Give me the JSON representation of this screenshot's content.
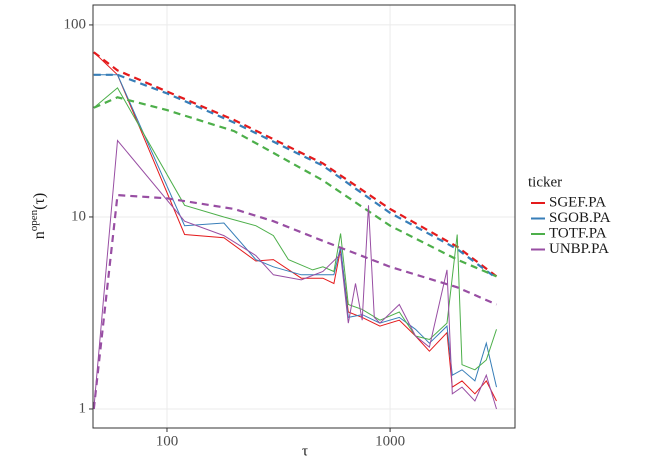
{
  "chart_data": {
    "type": "line",
    "xlabel": "τ",
    "ylabel": [
      "n",
      "open",
      "(τ)"
    ],
    "legend_title": "ticker",
    "legend": "right",
    "grid": true,
    "xscale": "log",
    "yscale": "log",
    "xlim": [
      46.6,
      3630
    ],
    "ylim": [
      0.796,
      127
    ],
    "xticks": [
      100,
      1000
    ],
    "yticks": [
      1,
      10,
      100
    ],
    "series": [
      {
        "name": "SGEF.PA",
        "color": "#e41a1c",
        "x": [
          47,
          60,
          120,
          180,
          250,
          300,
          400,
          500,
          560,
          600,
          650,
          750,
          900,
          1100,
          1300,
          1500,
          1800,
          1900,
          2100,
          2400,
          2700,
          3000
        ],
        "values": [
          72,
          55,
          8.1,
          7.8,
          5.9,
          6,
          4.8,
          4.8,
          4.5,
          6.8,
          3.2,
          3,
          2.7,
          2.9,
          2.4,
          2,
          2.5,
          1.3,
          1.4,
          1.2,
          1.4,
          1.1
        ],
        "fit_x": [
          47,
          60,
          100,
          200,
          500,
          1000,
          2000,
          3000
        ],
        "fit_values": [
          72,
          58,
          45,
          32,
          19,
          11,
          7,
          4.9
        ]
      },
      {
        "name": "SGOB.PA",
        "color": "#377eb8",
        "x": [
          47,
          60,
          120,
          180,
          250,
          300,
          400,
          500,
          560,
          600,
          650,
          750,
          900,
          1100,
          1300,
          1500,
          1800,
          1900,
          2100,
          2400,
          2700,
          3000
        ],
        "values": [
          55,
          55,
          9,
          9.3,
          6,
          5.5,
          5,
          5,
          5,
          7,
          3,
          3.1,
          2.8,
          3,
          2.6,
          2.2,
          2.7,
          1.5,
          1.6,
          1.4,
          2.2,
          1.3
        ],
        "fit_x": [
          47,
          60,
          100,
          200,
          500,
          1000,
          2000,
          3000
        ],
        "fit_values": [
          55,
          55,
          44,
          31,
          18.5,
          10.5,
          6.8,
          4.8
        ]
      },
      {
        "name": "TOTF.PA",
        "color": "#4daf4a",
        "x": [
          47,
          60,
          120,
          180,
          250,
          300,
          350,
          450,
          500,
          560,
          600,
          650,
          750,
          900,
          1100,
          1300,
          1500,
          1800,
          2000,
          2100,
          2400,
          2700,
          3000
        ],
        "values": [
          37,
          47,
          11.5,
          10,
          9,
          8,
          6,
          5.3,
          5.5,
          5.2,
          8.2,
          3.5,
          3.3,
          2.9,
          3.2,
          2.4,
          2.3,
          2.8,
          8.1,
          1.7,
          1.6,
          1.8,
          2.6
        ],
        "fit_x": [
          47,
          60,
          100,
          200,
          500,
          1000,
          2000,
          3000
        ],
        "fit_values": [
          37,
          42,
          36,
          28,
          15.5,
          9,
          6,
          4.9
        ]
      },
      {
        "name": "UNBP.PA",
        "color": "#984ea3",
        "x": [
          47,
          60,
          120,
          180,
          250,
          300,
          400,
          500,
          600,
          650,
          700,
          750,
          800,
          850,
          900,
          1100,
          1300,
          1500,
          1800,
          1900,
          2100,
          2400,
          2700,
          3000
        ],
        "values": [
          1,
          25,
          9.5,
          8,
          6.3,
          5,
          4.7,
          5.2,
          6.4,
          2.8,
          4.5,
          2.9,
          11.5,
          3,
          2.8,
          3.5,
          2.4,
          2.1,
          5.3,
          1.2,
          1.3,
          1.1,
          1.5,
          1
        ],
        "fit_x": [
          47,
          60,
          100,
          200,
          300,
          500,
          1000,
          2000,
          3000
        ],
        "fit_values": [
          1,
          13,
          12.5,
          11,
          9.5,
          7.5,
          5.5,
          4.3,
          3.5
        ]
      }
    ]
  }
}
